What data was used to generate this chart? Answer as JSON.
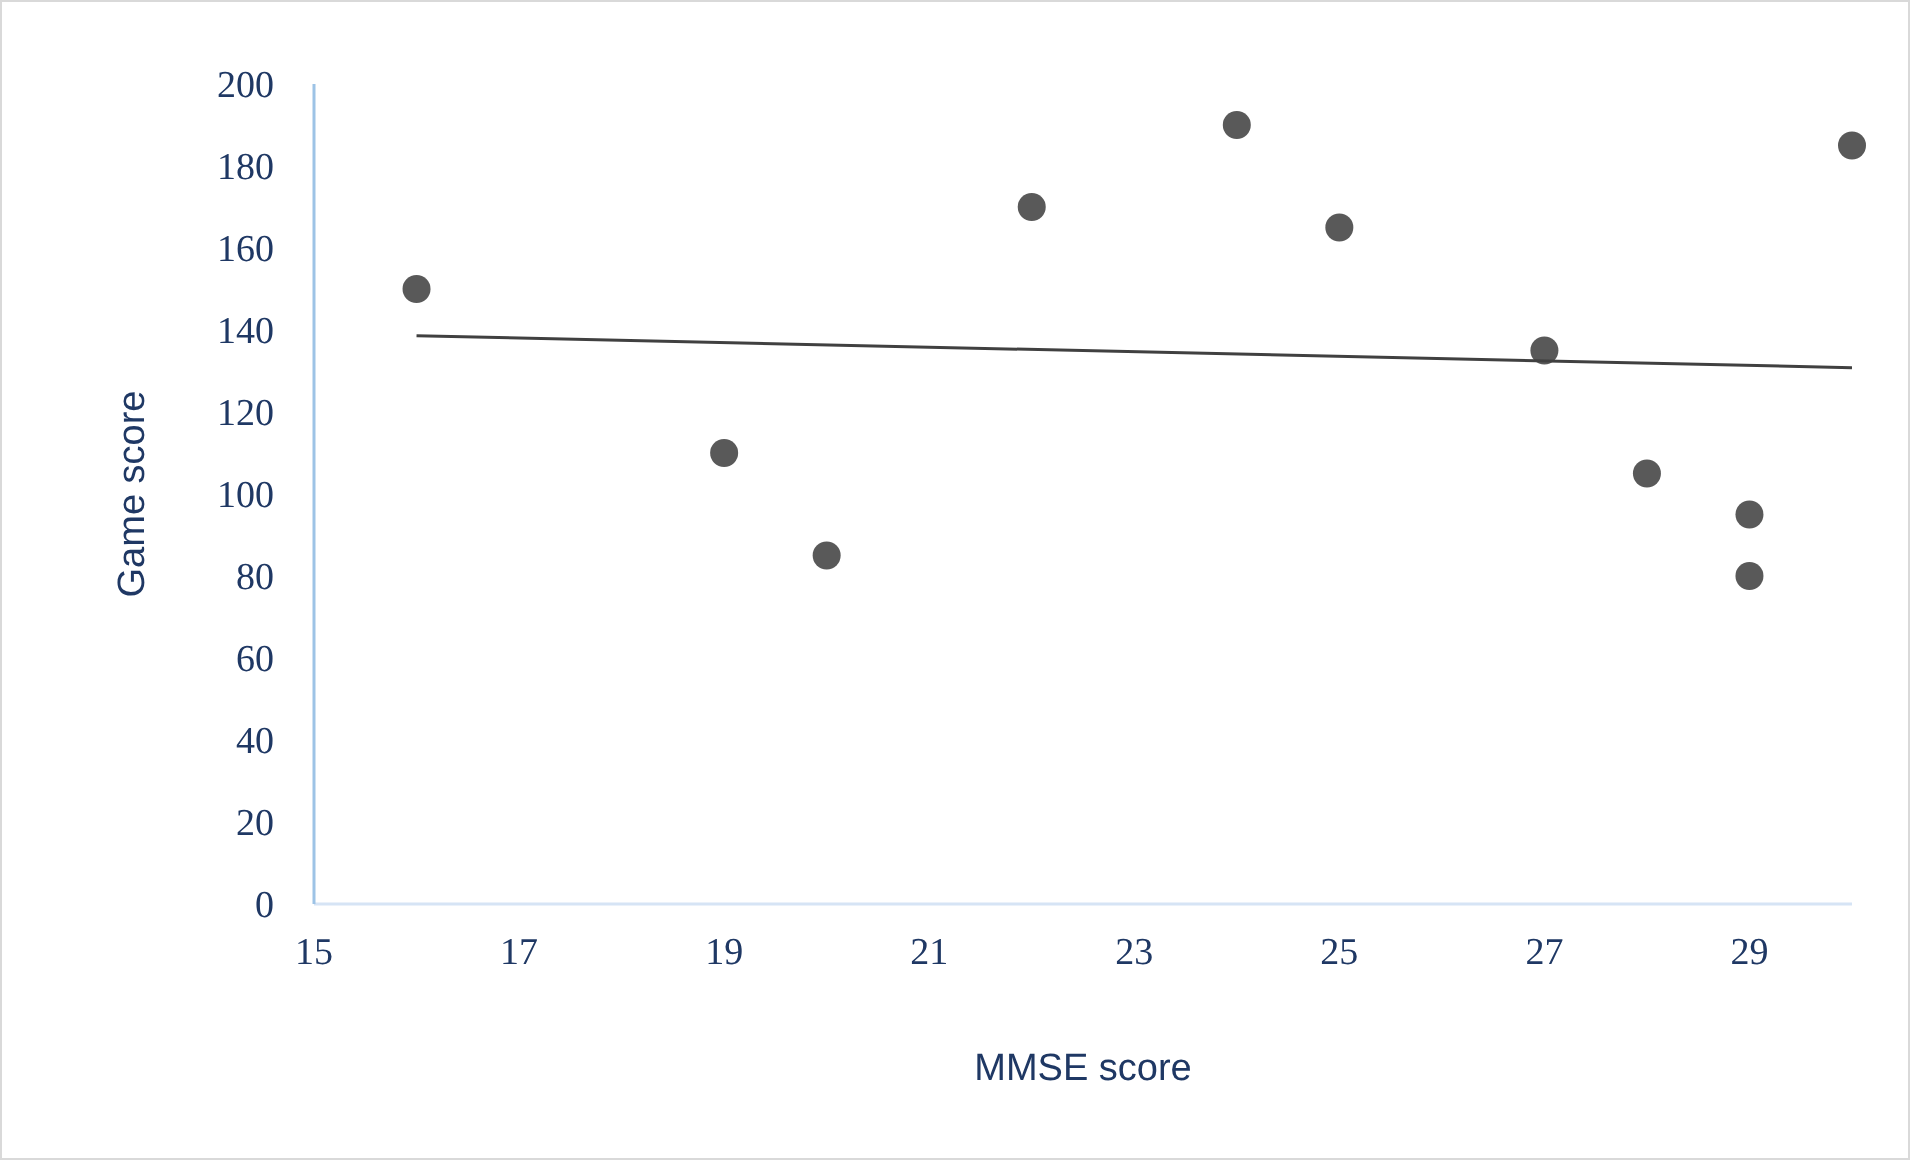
{
  "chart_data": {
    "type": "scatter",
    "xlabel": "MMSE score",
    "ylabel": "Game score",
    "xlim": [
      15,
      30
    ],
    "xticks": [
      15,
      17,
      19,
      21,
      23,
      25,
      27,
      29
    ],
    "ylim": [
      0,
      200
    ],
    "yticks": [
      0,
      20,
      40,
      60,
      80,
      100,
      120,
      140,
      160,
      180,
      200
    ],
    "grid": false,
    "marker": "circle",
    "series": [
      {
        "type": "scatter",
        "color": "#595959",
        "x": [
          16,
          19,
          20,
          22,
          24,
          25,
          27,
          28,
          29,
          29,
          30
        ],
        "values": [
          150,
          110,
          85,
          170,
          190,
          165,
          135,
          105,
          95,
          80,
          185
        ]
      },
      {
        "type": "line",
        "color": "#404040",
        "marker": "none",
        "line_style": "solid",
        "x": [
          16,
          30
        ],
        "values": [
          138.6,
          130.8
        ]
      }
    ]
  }
}
